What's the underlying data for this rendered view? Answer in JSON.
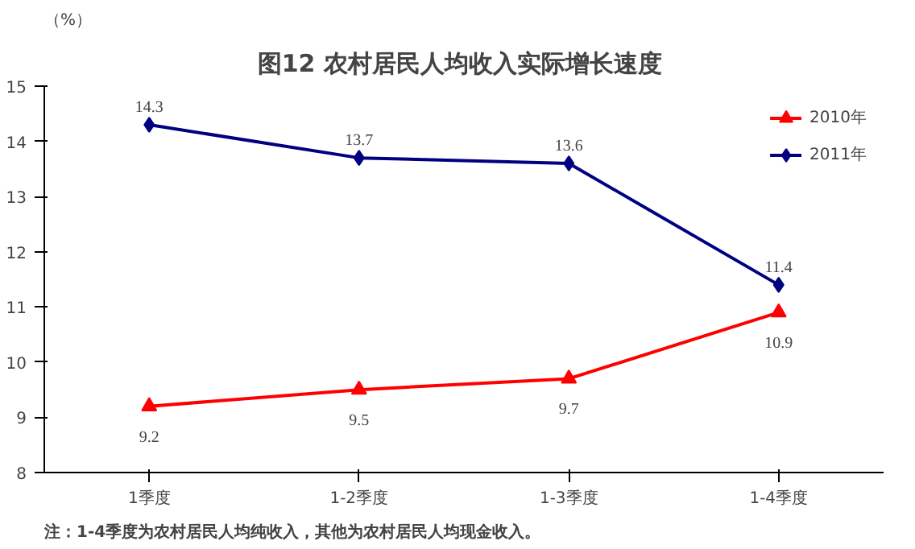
{
  "chart_data": {
    "type": "line",
    "title": "图12  农村居民人均收入实际增长速度",
    "ylabel": "（%）",
    "categories": [
      "1季度",
      "1-2季度",
      "1-3季度",
      "1-4季度"
    ],
    "series": [
      {
        "name": "2010年",
        "color": "#ff0000",
        "marker": "triangle",
        "values": [
          9.2,
          9.5,
          9.7,
          10.9
        ]
      },
      {
        "name": "2011年",
        "color": "#000080",
        "marker": "diamond",
        "values": [
          14.3,
          13.7,
          13.6,
          11.4
        ]
      }
    ],
    "ylim": [
      8,
      15
    ],
    "yticks": [
      8,
      9,
      10,
      11,
      12,
      13,
      14,
      15
    ],
    "grid": false,
    "legend": "top right",
    "data_labels": true,
    "line_style": "solid",
    "annotations": [
      "注：1-4季度为农村居民人均纯收入，其他为农村居民人均现金收入。"
    ]
  }
}
